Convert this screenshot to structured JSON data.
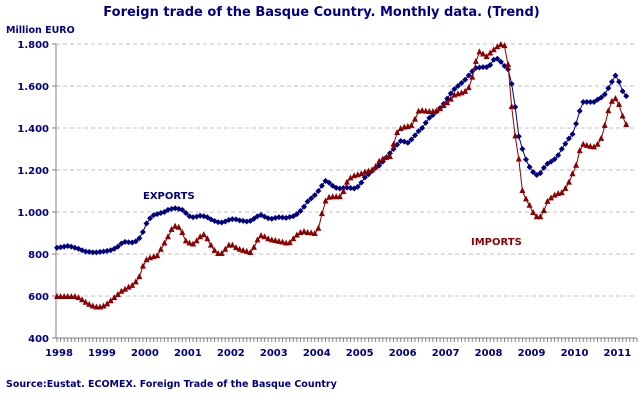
{
  "chart_data": {
    "type": "line",
    "title": "Foreign trade of the Basque Country. Monthly data. (Trend)",
    "ylabel": "Million EURO",
    "xlabel": "",
    "source": "Source:Eustat. ECOMEX. Foreign Trade of the Basque Country",
    "ylim": [
      400,
      1800
    ],
    "yticks": [
      "400",
      "600",
      "800",
      "1.000",
      "1.200",
      "1.400",
      "1.600",
      "1.800"
    ],
    "ytick_values": [
      400,
      600,
      800,
      1000,
      1200,
      1400,
      1600,
      1800
    ],
    "xticks": [
      "1998",
      "1999",
      "2000",
      "2001",
      "2002",
      "2003",
      "2004",
      "2005",
      "2006",
      "2007",
      "2008",
      "2009",
      "2010",
      "2011"
    ],
    "grid": "horizontal dashed",
    "legend": "inline labels",
    "x": [
      "1998-01",
      "1998-02",
      "1998-03",
      "1998-04",
      "1998-05",
      "1998-06",
      "1998-07",
      "1998-08",
      "1998-09",
      "1998-10",
      "1998-11",
      "1998-12",
      "1999-01",
      "1999-02",
      "1999-03",
      "1999-04",
      "1999-05",
      "1999-06",
      "1999-07",
      "1999-08",
      "1999-09",
      "1999-10",
      "1999-11",
      "1999-12",
      "2000-01",
      "2000-02",
      "2000-03",
      "2000-04",
      "2000-05",
      "2000-06",
      "2000-07",
      "2000-08",
      "2000-09",
      "2000-10",
      "2000-11",
      "2000-12",
      "2001-01",
      "2001-02",
      "2001-03",
      "2001-04",
      "2001-05",
      "2001-06",
      "2001-07",
      "2001-08",
      "2001-09",
      "2001-10",
      "2001-11",
      "2001-12",
      "2002-01",
      "2002-02",
      "2002-03",
      "2002-04",
      "2002-05",
      "2002-06",
      "2002-07",
      "2002-08",
      "2002-09",
      "2002-10",
      "2002-11",
      "2002-12",
      "2003-01",
      "2003-02",
      "2003-03",
      "2003-04",
      "2003-05",
      "2003-06",
      "2003-07",
      "2003-08",
      "2003-09",
      "2003-10",
      "2003-11",
      "2003-12",
      "2004-01",
      "2004-02",
      "2004-03",
      "2004-04",
      "2004-05",
      "2004-06",
      "2004-07",
      "2004-08",
      "2004-09",
      "2004-10",
      "2004-11",
      "2004-12",
      "2005-01",
      "2005-02",
      "2005-03",
      "2005-04",
      "2005-05",
      "2005-06",
      "2005-07",
      "2005-08",
      "2005-09",
      "2005-10",
      "2005-11",
      "2005-12",
      "2006-01",
      "2006-02",
      "2006-03",
      "2006-04",
      "2006-05",
      "2006-06",
      "2006-07",
      "2006-08",
      "2006-09",
      "2006-10",
      "2006-11",
      "2006-12",
      "2007-01",
      "2007-02",
      "2007-03",
      "2007-04",
      "2007-05",
      "2007-06",
      "2007-07",
      "2007-08",
      "2007-09",
      "2007-10",
      "2007-11",
      "2007-12",
      "2008-01",
      "2008-02",
      "2008-03",
      "2008-04",
      "2008-05",
      "2008-06",
      "2008-07",
      "2008-08",
      "2008-09",
      "2008-10",
      "2008-11",
      "2008-12",
      "2009-01",
      "2009-02",
      "2009-03",
      "2009-04",
      "2009-05",
      "2009-06",
      "2009-07",
      "2009-08",
      "2009-09",
      "2009-10",
      "2009-11",
      "2009-12",
      "2010-01",
      "2010-02",
      "2010-03",
      "2010-04",
      "2010-05",
      "2010-06",
      "2010-07",
      "2010-08",
      "2010-09",
      "2010-10",
      "2010-11",
      "2010-12",
      "2011-01",
      "2011-02",
      "2011-03",
      "2011-04"
    ],
    "series": [
      {
        "name": "EXPORTS",
        "color": "#000080",
        "marker": "diamond",
        "values": [
          830,
          832,
          835,
          838,
          835,
          830,
          825,
          818,
          812,
          810,
          808,
          808,
          810,
          812,
          815,
          818,
          825,
          835,
          850,
          858,
          856,
          855,
          860,
          875,
          905,
          945,
          970,
          985,
          990,
          995,
          1000,
          1010,
          1015,
          1018,
          1015,
          1010,
          995,
          980,
          975,
          978,
          982,
          980,
          975,
          965,
          957,
          952,
          950,
          955,
          962,
          966,
          965,
          960,
          958,
          955,
          958,
          968,
          980,
          986,
          978,
          970,
          968,
          972,
          975,
          974,
          972,
          976,
          980,
          990,
          1005,
          1025,
          1050,
          1065,
          1080,
          1100,
          1125,
          1148,
          1140,
          1125,
          1115,
          1112,
          1114,
          1116,
          1114,
          1112,
          1120,
          1140,
          1165,
          1180,
          1195,
          1210,
          1222,
          1240,
          1260,
          1280,
          1300,
          1320,
          1338,
          1335,
          1330,
          1345,
          1365,
          1385,
          1400,
          1425,
          1448,
          1462,
          1478,
          1495,
          1515,
          1540,
          1565,
          1585,
          1600,
          1614,
          1630,
          1650,
          1670,
          1685,
          1688,
          1690,
          1690,
          1700,
          1725,
          1730,
          1715,
          1695,
          1680,
          1610,
          1500,
          1360,
          1300,
          1250,
          1214,
          1190,
          1176,
          1185,
          1210,
          1230,
          1240,
          1252,
          1270,
          1300,
          1325,
          1350,
          1371,
          1420,
          1481,
          1524,
          1524,
          1524,
          1524,
          1535,
          1545,
          1560,
          1590,
          1620,
          1650,
          1620,
          1575,
          1552
        ]
      },
      {
        "name": "IMPORTS",
        "color": "#8B0000",
        "marker": "triangle",
        "values": [
          595,
          595,
          595,
          595,
          595,
          595,
          590,
          580,
          568,
          558,
          550,
          545,
          545,
          550,
          560,
          575,
          590,
          605,
          620,
          630,
          640,
          648,
          665,
          690,
          740,
          770,
          780,
          785,
          790,
          820,
          850,
          880,
          915,
          930,
          925,
          900,
          860,
          850,
          845,
          860,
          880,
          890,
          870,
          840,
          815,
          800,
          800,
          820,
          840,
          840,
          828,
          820,
          815,
          810,
          805,
          830,
          865,
          885,
          880,
          870,
          865,
          862,
          858,
          855,
          850,
          852,
          870,
          888,
          900,
          905,
          900,
          898,
          895,
          920,
          990,
          1050,
          1068,
          1070,
          1070,
          1071,
          1095,
          1140,
          1160,
          1170,
          1175,
          1180,
          1188,
          1192,
          1198,
          1215,
          1240,
          1250,
          1258,
          1262,
          1320,
          1376,
          1395,
          1402,
          1405,
          1410,
          1440,
          1478,
          1481,
          1478,
          1476,
          1476,
          1480,
          1490,
          1505,
          1518,
          1535,
          1555,
          1560,
          1565,
          1572,
          1590,
          1640,
          1715,
          1760,
          1750,
          1738,
          1755,
          1770,
          1785,
          1795,
          1790,
          1700,
          1500,
          1360,
          1250,
          1100,
          1060,
          1030,
          995,
          975,
          975,
          1005,
          1048,
          1065,
          1078,
          1086,
          1090,
          1110,
          1140,
          1180,
          1220,
          1290,
          1320,
          1315,
          1310,
          1308,
          1320,
          1348,
          1410,
          1480,
          1525,
          1538,
          1510,
          1455,
          1414
        ]
      }
    ]
  }
}
